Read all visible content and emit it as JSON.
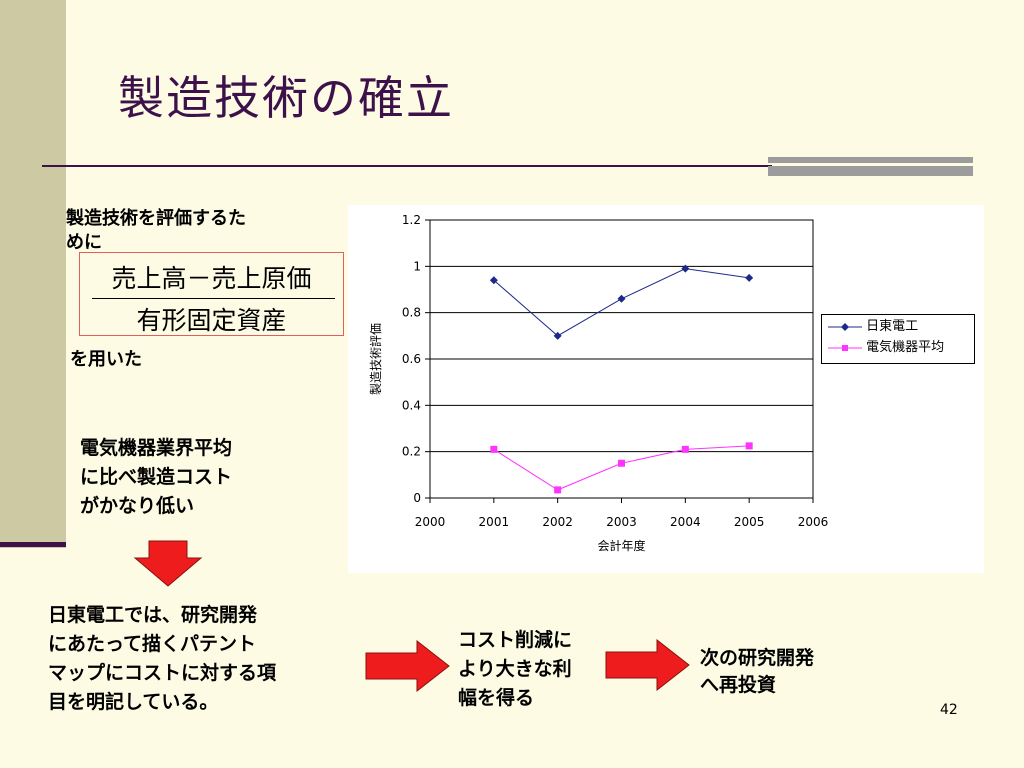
{
  "title": "製造技術の確立",
  "text_block_1": [
    "製造技術を評価するた",
    "めに"
  ],
  "formula": {
    "numerator": "売上高－売上原価",
    "denominator": "有形固定資産"
  },
  "text_block_2": "を用いた",
  "text_block_3": [
    "電気機器業界平均",
    "に比べ製造コスト",
    "がかなり低い"
  ],
  "text_block_4": [
    "日東電工では、研究開発",
    "にあたって描くパテント",
    "マップにコストに対する項",
    "目を明記している。"
  ],
  "text_block_5": [
    "コスト削減に",
    "より大きな利",
    "幅を得る"
  ],
  "text_block_6": [
    "次の研究開発",
    "へ再投資"
  ],
  "page_number": "42",
  "colors": {
    "title": "#3d1149",
    "arrow": "#ee1c1c",
    "series_nitto": "#1e2a8a",
    "series_avg": "#ff33ff"
  },
  "chart_data": {
    "type": "line",
    "title": "",
    "xlabel": "会計年度",
    "ylabel": "製造技術評価",
    "xlim": [
      2000,
      2006
    ],
    "ylim": [
      0,
      1.2
    ],
    "x_ticks": [
      "2000",
      "2001",
      "2002",
      "2003",
      "2004",
      "2005",
      "2006"
    ],
    "y_ticks": [
      "0",
      "0.2",
      "0.4",
      "0.6",
      "0.8",
      "1",
      "1.2"
    ],
    "grid": "horizontal",
    "legend_position": "right",
    "series": [
      {
        "name": "日東電工",
        "marker": "diamond",
        "color": "#1e2a8a",
        "x": [
          2001,
          2002,
          2003,
          2004,
          2005
        ],
        "values": [
          0.94,
          0.7,
          0.86,
          0.99,
          0.95
        ]
      },
      {
        "name": "電気機器平均",
        "marker": "square",
        "color": "#ff33ff",
        "x": [
          2001,
          2002,
          2003,
          2004,
          2005
        ],
        "values": [
          0.21,
          0.035,
          0.15,
          0.21,
          0.225
        ]
      }
    ]
  }
}
